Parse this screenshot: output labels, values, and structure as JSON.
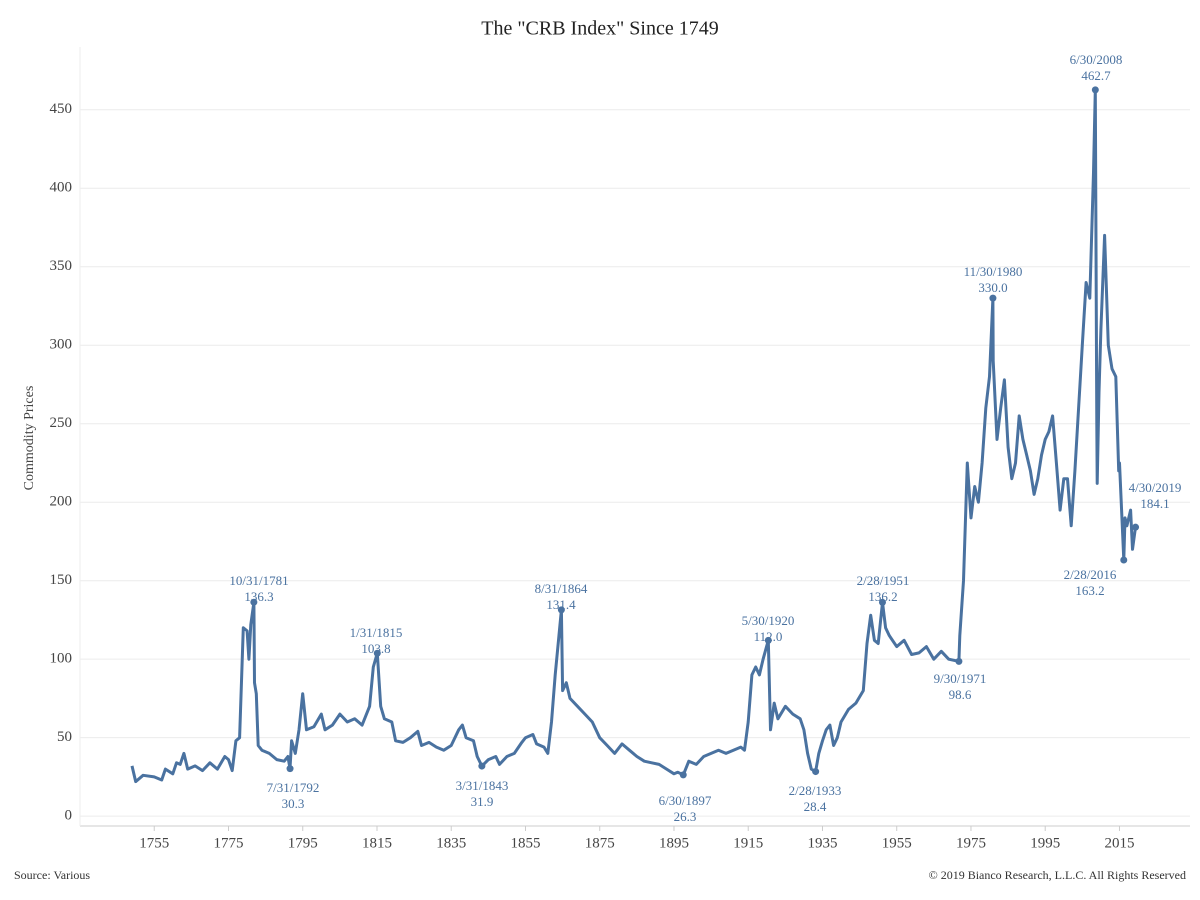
{
  "chart_data": {
    "type": "line",
    "title": "The \"CRB Index\" Since 1749",
    "ylabel": "Commodity Prices",
    "source": "Source: Various",
    "copyright": "© 2019 Bianco Research, L.L.C. All Rights Reserved",
    "color": "#4a72a0",
    "grid": true,
    "xlim": [
      1735,
      2034
    ],
    "xticks": [
      1755,
      1775,
      1795,
      1815,
      1835,
      1855,
      1875,
      1895,
      1915,
      1935,
      1955,
      1975,
      1995,
      2015
    ],
    "ylim": [
      -5,
      490
    ],
    "yticks": [
      0,
      50,
      100,
      150,
      200,
      250,
      300,
      350,
      400,
      450
    ],
    "x": [
      1749,
      1750,
      1752,
      1755,
      1757,
      1758,
      1760,
      1761,
      1762,
      1763,
      1764,
      1766,
      1768,
      1770,
      1772,
      1774,
      1775,
      1776,
      1777,
      1778,
      1779,
      1780,
      1780.5,
      1781,
      1781.83,
      1782,
      1782.5,
      1783,
      1784,
      1786,
      1788,
      1790,
      1791,
      1791.58,
      1792,
      1793,
      1794,
      1795,
      1796,
      1798,
      1800,
      1801,
      1803,
      1805,
      1807,
      1809,
      1811,
      1813,
      1814,
      1815.08,
      1816,
      1817,
      1819,
      1820,
      1822,
      1824,
      1826,
      1827,
      1829,
      1831,
      1833,
      1835,
      1837,
      1838,
      1839,
      1841,
      1842,
      1843.25,
      1845,
      1847,
      1848,
      1850,
      1852,
      1854,
      1855,
      1857,
      1858,
      1860,
      1861,
      1862,
      1863,
      1864.67,
      1865,
      1866,
      1867,
      1869,
      1871,
      1873,
      1875,
      1877,
      1879,
      1881,
      1883,
      1885,
      1887,
      1889,
      1891,
      1893,
      1895,
      1896,
      1897.5,
      1899,
      1901,
      1903,
      1905,
      1907,
      1909,
      1911,
      1913,
      1914,
      1915,
      1916,
      1917,
      1918,
      1919,
      1920.41,
      1921,
      1922,
      1923,
      1925,
      1927,
      1929,
      1930,
      1931,
      1932,
      1933.16,
      1934,
      1935,
      1936,
      1937,
      1938,
      1939,
      1940,
      1942,
      1944,
      1946,
      1947,
      1948,
      1949,
      1950,
      1951.16,
      1952,
      1953,
      1955,
      1957,
      1959,
      1961,
      1963,
      1965,
      1967,
      1969,
      1971.75,
      1972,
      1973,
      1974,
      1975,
      1976,
      1977,
      1978,
      1979,
      1980,
      1980.91,
      1981,
      1982,
      1983,
      1984,
      1985,
      1986,
      1987,
      1988,
      1989,
      1990,
      1991,
      1992,
      1993,
      1994,
      1995,
      1996,
      1997,
      1998,
      1999,
      2000,
      2001,
      2002,
      2003,
      2004,
      2005,
      2006,
      2007,
      2008,
      2008.5,
      2008.9,
      2009,
      2009.5,
      2010,
      2011,
      2012,
      2013,
      2014,
      2014.8,
      2015,
      2016.16,
      2016.5,
      2017,
      2018,
      2018.5,
      2019.33
    ],
    "values": [
      32,
      22,
      26,
      25,
      23,
      30,
      27,
      34,
      33,
      40,
      30,
      32,
      29,
      34,
      30,
      38,
      36,
      29,
      48,
      50,
      120,
      118,
      100,
      122,
      136.3,
      85,
      78,
      45,
      42,
      40,
      36,
      35,
      38,
      30.3,
      48,
      40,
      55,
      78,
      55,
      57,
      65,
      55,
      58,
      65,
      60,
      62,
      58,
      70,
      95,
      103.8,
      70,
      62,
      60,
      48,
      47,
      50,
      54,
      45,
      47,
      44,
      42,
      45,
      55,
      58,
      50,
      48,
      38,
      31.9,
      36,
      38,
      33,
      38,
      40,
      47,
      50,
      52,
      46,
      44,
      40,
      60,
      90,
      131.4,
      80,
      85,
      75,
      70,
      65,
      60,
      50,
      45,
      40,
      46,
      42,
      38,
      35,
      34,
      33,
      30,
      27,
      28,
      26.3,
      35,
      33,
      38,
      40,
      42,
      40,
      42,
      44,
      42,
      60,
      90,
      95,
      90,
      100,
      112.0,
      55,
      72,
      62,
      70,
      65,
      62,
      55,
      40,
      30,
      28.4,
      40,
      48,
      55,
      58,
      45,
      50,
      60,
      68,
      72,
      80,
      110,
      128,
      112,
      110,
      136.2,
      120,
      115,
      108,
      112,
      103,
      104,
      108,
      100,
      105,
      100,
      98.6,
      115,
      150,
      225,
      190,
      210,
      200,
      225,
      260,
      280,
      330.0,
      290,
      240,
      260,
      278,
      235,
      215,
      225,
      255,
      240,
      230,
      220,
      205,
      215,
      230,
      240,
      245,
      255,
      225,
      195,
      215,
      215,
      185,
      220,
      260,
      300,
      340,
      330,
      410,
      462.7,
      250,
      212,
      270,
      310,
      370,
      300,
      285,
      280,
      220,
      225,
      163.2,
      190,
      185,
      195,
      170,
      184.1
    ],
    "annotations": [
      {
        "text": "10/31/1781",
        "x": 1781.83,
        "y": 136.3,
        "value_label": "136.3"
      },
      {
        "text": "7/31/1792",
        "x": 1791.58,
        "y": 30.3,
        "value_label": "30.3"
      },
      {
        "text": "1/31/1815",
        "x": 1815.08,
        "y": 103.8,
        "value_label": "103.8"
      },
      {
        "text": "3/31/1843",
        "x": 1843.25,
        "y": 31.9,
        "value_label": "31.9"
      },
      {
        "text": "8/31/1864",
        "x": 1864.67,
        "y": 131.4,
        "value_label": "131.4"
      },
      {
        "text": "6/30/1897",
        "x": 1897.5,
        "y": 26.3,
        "value_label": "26.3"
      },
      {
        "text": "5/30/1920",
        "x": 1920.41,
        "y": 112.0,
        "value_label": "112.0"
      },
      {
        "text": "2/28/1933",
        "x": 1933.16,
        "y": 28.4,
        "value_label": "28.4"
      },
      {
        "text": "2/28/1951",
        "x": 1951.16,
        "y": 136.2,
        "value_label": "136.2"
      },
      {
        "text": "9/30/1971",
        "x": 1971.75,
        "y": 98.6,
        "value_label": "98.6"
      },
      {
        "text": "11/30/1980",
        "x": 1980.91,
        "y": 330.0,
        "value_label": "330.0"
      },
      {
        "text": "6/30/2008",
        "x": 2008.5,
        "y": 462.7,
        "value_label": "462.7"
      },
      {
        "text": "2/28/2016",
        "x": 2016.16,
        "y": 163.2,
        "value_label": "163.2"
      },
      {
        "text": "4/30/2019",
        "x": 2019.33,
        "y": 184.1,
        "value_label": "184.1"
      }
    ]
  }
}
